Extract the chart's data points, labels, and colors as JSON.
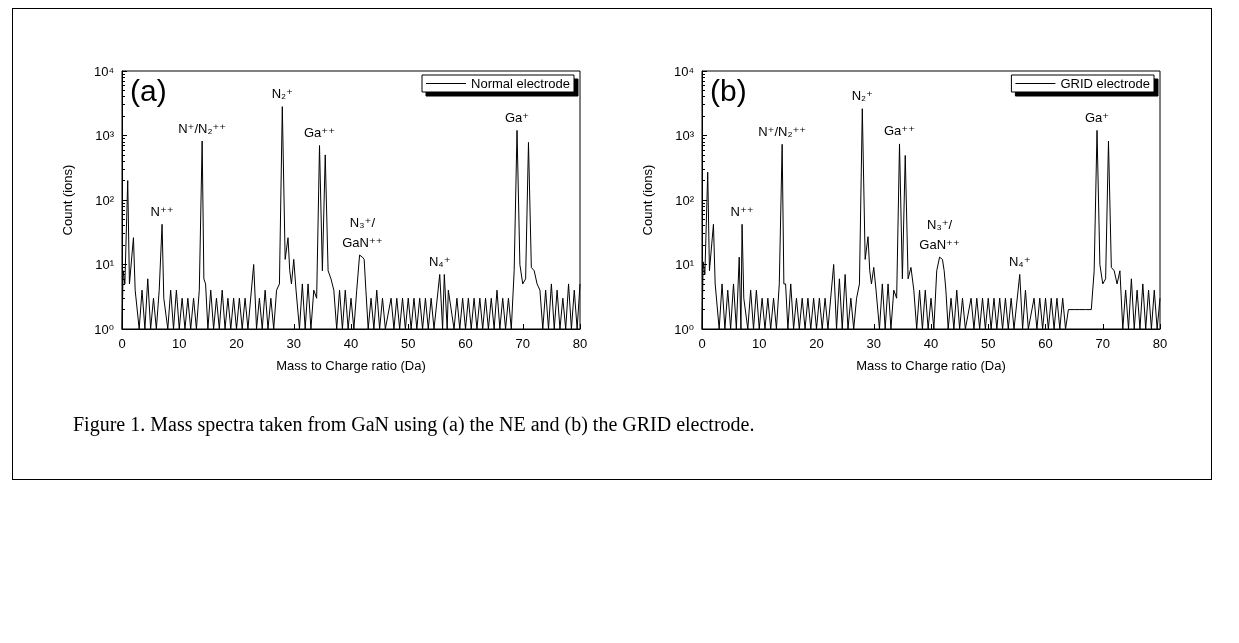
{
  "chart_data": [
    {
      "type": "line",
      "xlabel": "Mass to Charge ratio (Da)",
      "ylabel": "Count (ions)",
      "log": "y",
      "grid": false,
      "legend": "top right",
      "marker": "none",
      "line_style": "solid",
      "xlim": [
        0,
        80
      ],
      "xticks": [
        0,
        10,
        20,
        30,
        40,
        50,
        60,
        70,
        80
      ],
      "ylim": [
        1,
        10000
      ],
      "yticks": [
        {
          "value": 1,
          "label": "10⁰"
        },
        {
          "value": 10,
          "label": "10¹"
        },
        {
          "value": 100,
          "label": "10²"
        },
        {
          "value": 1000,
          "label": "10³"
        },
        {
          "value": 10000,
          "label": "10⁴"
        }
      ],
      "annotations": [
        "(a)",
        {
          "text": "N⁺⁺",
          "x": 7,
          "y": 42
        },
        {
          "text": "N⁺/N₂⁺⁺",
          "x": 14,
          "y": 820
        },
        {
          "text": "N₂⁺",
          "x": 28,
          "y": 2800
        },
        {
          "text": "Ga⁺⁺",
          "x": 34.5,
          "y": 700
        },
        {
          "text": "N₃⁺/\nGaN⁺⁺",
          "x": 42,
          "y": 14
        },
        {
          "text": "N₄⁺",
          "x": 55.5,
          "y": 7
        },
        {
          "text": "Ga⁺",
          "x": 69,
          "y": 1200
        }
      ],
      "series": [
        {
          "name": "Normal electrode",
          "color": "#000000",
          "x": [
            0,
            0.2,
            0.5,
            1,
            1.3,
            2,
            2.3,
            3,
            3.5,
            4,
            4.5,
            5,
            5.5,
            6,
            6.5,
            7,
            7.3,
            8,
            8.5,
            9,
            9.5,
            10,
            10.5,
            11,
            11.5,
            12,
            12.5,
            13,
            13.5,
            14,
            14.3,
            14.6,
            15,
            15.5,
            16,
            16.5,
            17,
            17.5,
            18,
            18.5,
            19,
            19.5,
            20,
            20.5,
            21,
            21.5,
            22,
            23,
            23.5,
            24,
            24.5,
            25,
            25.5,
            26,
            26.5,
            27,
            27.5,
            28,
            28.5,
            29,
            29.3,
            29.6,
            30,
            30.4,
            31,
            31.5,
            32,
            32.5,
            33,
            33.5,
            34,
            34.5,
            35,
            35.5,
            36,
            36.5,
            37,
            37.5,
            38,
            38.5,
            39,
            39.5,
            40,
            40.5,
            41,
            41.5,
            42,
            42.3,
            42.6,
            43,
            43.5,
            44,
            44.5,
            45,
            45.5,
            46,
            47,
            47.5,
            48,
            48.5,
            49,
            49.5,
            50,
            50.5,
            51,
            51.5,
            52,
            52.5,
            53,
            53.5,
            54,
            54.5,
            55.5,
            56,
            56.3,
            56.8,
            57,
            58,
            58.5,
            59,
            59.5,
            60,
            60.5,
            61,
            61.5,
            62,
            62.5,
            63,
            63.5,
            64,
            64.5,
            65,
            65.5,
            66,
            66.5,
            67,
            67.5,
            68,
            68.5,
            69,
            69.5,
            70,
            70.5,
            71,
            71.5,
            72,
            72.5,
            73,
            73.5,
            74,
            74.5,
            75,
            75.5,
            76,
            76.5,
            77,
            77.5,
            78,
            78.5,
            79,
            79.5,
            80
          ],
          "values": [
            1,
            8,
            5,
            200,
            5,
            26,
            4,
            1,
            4,
            1,
            6,
            1,
            3,
            1,
            4,
            42,
            3,
            1,
            4,
            1,
            4,
            1,
            3,
            1,
            3,
            1,
            3,
            1,
            4,
            820,
            6,
            5,
            1,
            4,
            1,
            3,
            1,
            4,
            1,
            3,
            1,
            3,
            1,
            3,
            1,
            3,
            1,
            10,
            1,
            3,
            1,
            4,
            1,
            3,
            1,
            4,
            5,
            2800,
            12,
            26,
            8,
            5,
            12,
            4,
            1,
            5,
            1,
            5,
            1,
            4,
            3,
            700,
            8,
            500,
            8,
            6,
            4,
            1,
            4,
            1,
            4,
            1,
            3,
            1,
            4,
            14,
            13,
            12,
            4,
            1,
            3,
            1,
            4,
            1,
            3,
            1,
            3,
            1,
            3,
            1,
            3,
            1,
            3,
            1,
            3,
            1,
            3,
            1,
            3,
            1,
            3,
            1,
            7,
            1,
            7,
            1,
            4,
            1,
            3,
            1,
            3,
            1,
            3,
            1,
            3,
            1,
            3,
            1,
            3,
            1,
            3,
            1,
            4,
            1,
            3,
            1,
            3,
            1,
            8,
            1200,
            10,
            5,
            6,
            780,
            9,
            8,
            5,
            4,
            1,
            4,
            1,
            5,
            1,
            4,
            1,
            3,
            1,
            5,
            1,
            4,
            1,
            5
          ]
        }
      ]
    },
    {
      "type": "line",
      "xlabel": "Mass to Charge ratio (Da)",
      "ylabel": "Count (ions)",
      "log": "y",
      "grid": false,
      "legend": "top right",
      "marker": "none",
      "line_style": "solid",
      "xlim": [
        0,
        80
      ],
      "xticks": [
        0,
        10,
        20,
        30,
        40,
        50,
        60,
        70,
        80
      ],
      "ylim": [
        1,
        10000
      ],
      "yticks": [
        {
          "value": 1,
          "label": "10⁰"
        },
        {
          "value": 10,
          "label": "10¹"
        },
        {
          "value": 100,
          "label": "10²"
        },
        {
          "value": 1000,
          "label": "10³"
        },
        {
          "value": 10000,
          "label": "10⁴"
        }
      ],
      "annotations": [
        "(b)",
        {
          "text": "N⁺⁺",
          "x": 7,
          "y": 42
        },
        {
          "text": "N⁺/N₂⁺⁺",
          "x": 14,
          "y": 730
        },
        {
          "text": "N₂⁺",
          "x": 28,
          "y": 2600
        },
        {
          "text": "Ga⁺⁺",
          "x": 34.5,
          "y": 740
        },
        {
          "text": "N₃⁺/\nGaN⁺⁺",
          "x": 41.5,
          "y": 13
        },
        {
          "text": "N₄⁺",
          "x": 55.5,
          "y": 7
        },
        {
          "text": "Ga⁺",
          "x": 69,
          "y": 1200
        },
        "Figure 1. Mass spectra taken from GaN using (a) the NE and (b) the GRID electrode."
      ],
      "series": [
        {
          "name": "GRID electrode",
          "color": "#000000",
          "x": [
            0,
            0.2,
            0.5,
            1,
            1.3,
            2,
            2.3,
            3,
            3.5,
            4,
            4.5,
            5,
            5.5,
            6,
            6.5,
            6.8,
            7,
            7.3,
            8,
            8.5,
            9,
            9.5,
            10,
            10.5,
            11,
            11.5,
            12,
            12.5,
            13,
            13.5,
            14,
            14.3,
            14.6,
            15,
            15.5,
            16,
            16.5,
            17,
            17.5,
            18,
            18.5,
            19,
            19.5,
            20,
            20.5,
            21,
            21.5,
            22,
            23,
            23.5,
            24,
            24.5,
            25,
            25.5,
            26,
            26.5,
            27,
            27.5,
            28,
            28.5,
            29,
            29.3,
            29.6,
            30,
            30.4,
            31,
            31.5,
            32,
            32.5,
            33,
            33.5,
            34,
            34.5,
            35,
            35.5,
            36,
            36.5,
            37,
            37.5,
            38,
            38.5,
            39,
            39.5,
            40,
            40.5,
            41,
            41.5,
            42,
            42.3,
            42.6,
            43,
            43.5,
            44,
            44.5,
            45,
            45.5,
            46,
            47,
            47.5,
            48,
            48.5,
            49,
            49.5,
            50,
            50.5,
            51,
            51.5,
            52,
            52.5,
            53,
            53.5,
            54,
            54.5,
            55.5,
            56,
            56.5,
            57,
            58,
            58.5,
            59,
            59.5,
            60,
            60.5,
            61,
            61.5,
            62,
            62.5,
            63,
            63.5,
            64,
            65,
            66,
            67,
            68,
            68.5,
            69,
            69.5,
            70,
            70.5,
            71,
            71.5,
            72,
            72.5,
            73,
            73.5,
            74,
            74.5,
            75,
            75.5,
            76,
            76.5,
            77,
            77.5,
            78,
            78.5,
            79,
            79.5,
            80
          ],
          "values": [
            1,
            11,
            7,
            270,
            8,
            42,
            5,
            1,
            5,
            1,
            4,
            1,
            5,
            1,
            13,
            1,
            42,
            3,
            1,
            4,
            1,
            4,
            1,
            3,
            1,
            3,
            1,
            3,
            1,
            5,
            730,
            5,
            5,
            1,
            5,
            1,
            3,
            1,
            3,
            1,
            3,
            1,
            3,
            1,
            3,
            1,
            3,
            1,
            10,
            1,
            6,
            1,
            7,
            1,
            3,
            1,
            3,
            5,
            2600,
            12,
            27,
            8,
            5,
            9,
            4,
            1,
            5,
            1,
            5,
            1,
            4,
            3,
            740,
            6,
            490,
            6,
            9,
            4,
            1,
            4,
            1,
            4,
            1,
            3,
            1,
            8,
            13,
            12,
            8,
            4,
            1,
            3,
            1,
            4,
            1,
            3,
            1,
            3,
            1,
            3,
            1,
            3,
            1,
            3,
            1,
            3,
            1,
            3,
            1,
            3,
            1,
            3,
            1,
            7,
            1,
            4,
            1,
            3,
            1,
            3,
            1,
            3,
            1,
            3,
            1,
            3,
            1,
            3,
            1,
            2,
            2,
            2,
            2,
            2,
            8,
            1200,
            10,
            5,
            6,
            820,
            9,
            8,
            5,
            8,
            1,
            4,
            1,
            6,
            1,
            4,
            1,
            5,
            1,
            4,
            1,
            4,
            1,
            3
          ]
        }
      ]
    }
  ]
}
